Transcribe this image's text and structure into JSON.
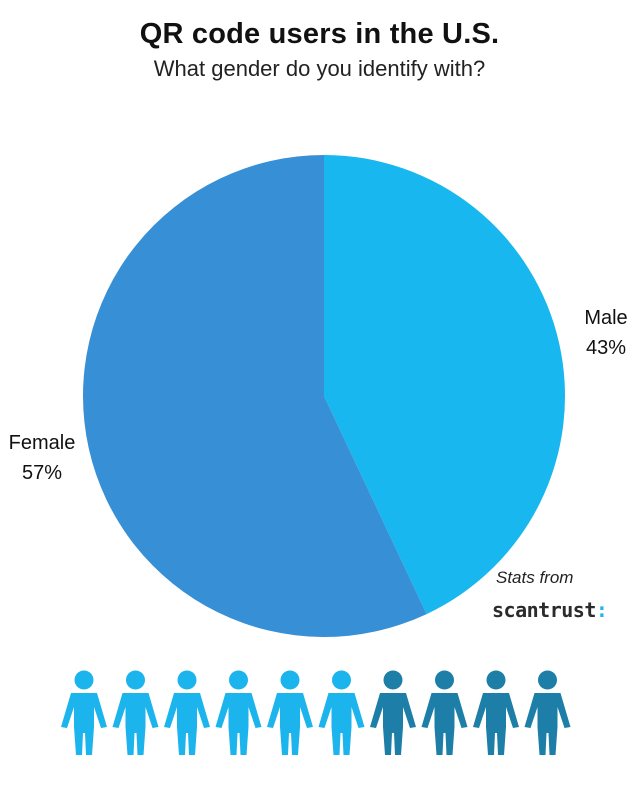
{
  "chart_data": {
    "type": "pie",
    "title": "QR code users in the U.S.",
    "subtitle": "What gender do you identify with?",
    "slices": [
      {
        "label": "Male",
        "value": 43,
        "display": "43%",
        "color": "#18b7ef"
      },
      {
        "label": "Female",
        "value": 57,
        "display": "57%",
        "color": "#378fd6"
      }
    ]
  },
  "source": {
    "prefix": "Stats from",
    "brand": "scantrust",
    "brand_mark": ":"
  },
  "pictogram": {
    "total": 10,
    "light_count": 6,
    "light_color": "#1cb4ec",
    "dark_color": "#1d7fa8",
    "icon": "person-icon"
  }
}
